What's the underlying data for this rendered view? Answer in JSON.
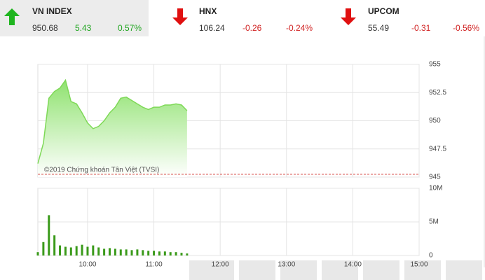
{
  "header": {
    "indices": [
      {
        "name": "VN INDEX",
        "value": "950.68",
        "change": "5.43",
        "percent": "0.57%",
        "direction": "up"
      },
      {
        "name": "HNX",
        "value": "106.24",
        "change": "-0.26",
        "percent": "-0.24%",
        "direction": "down"
      },
      {
        "name": "UPCOM",
        "value": "55.49",
        "change": "-0.31",
        "percent": "-0.56%",
        "direction": "down"
      }
    ]
  },
  "chart_data": [
    {
      "type": "area",
      "color": "#7ed957",
      "reference": 945.25,
      "reference_color": "#d9534f",
      "annotation": "©2019 Chứng khoán Tân Việt (TVSI)",
      "x": [
        "09:15",
        "09:20",
        "09:25",
        "09:30",
        "09:35",
        "09:40",
        "09:45",
        "09:50",
        "09:55",
        "10:00",
        "10:05",
        "10:10",
        "10:15",
        "10:20",
        "10:25",
        "10:30",
        "10:35",
        "10:40",
        "10:45",
        "10:50",
        "10:55",
        "11:00",
        "11:05",
        "11:10",
        "11:15",
        "11:20",
        "11:25",
        "11:30"
      ],
      "values": [
        946.2,
        948.0,
        952.0,
        952.6,
        952.9,
        953.6,
        951.7,
        951.5,
        950.7,
        949.8,
        949.3,
        949.5,
        950.0,
        950.7,
        951.2,
        952.0,
        952.1,
        951.8,
        951.5,
        951.2,
        951.0,
        951.2,
        951.2,
        951.4,
        951.4,
        951.5,
        951.4,
        950.9
      ],
      "xlim": [
        "09:15",
        "15:00"
      ],
      "ylim": [
        945,
        955
      ],
      "yticks": [
        945,
        947.5,
        950,
        952.5,
        955
      ],
      "grid": true
    },
    {
      "type": "bar",
      "color": "#3a9a1a",
      "x": [
        "09:15",
        "09:20",
        "09:25",
        "09:30",
        "09:35",
        "09:40",
        "09:45",
        "09:50",
        "09:55",
        "10:00",
        "10:05",
        "10:10",
        "10:15",
        "10:20",
        "10:25",
        "10:30",
        "10:35",
        "10:40",
        "10:45",
        "10:50",
        "10:55",
        "11:00",
        "11:05",
        "11:10",
        "11:15",
        "11:20",
        "11:25",
        "11:30"
      ],
      "values": [
        500000,
        2000000,
        6000000,
        3000000,
        1500000,
        1300000,
        1200000,
        1400000,
        1600000,
        1300000,
        1500000,
        1200000,
        1000000,
        1100000,
        1000000,
        900000,
        900000,
        800000,
        900000,
        800000,
        700000,
        700000,
        600000,
        600000,
        500000,
        500000,
        400000,
        300000
      ],
      "xlim": [
        "09:15",
        "15:00"
      ],
      "ylim": [
        0,
        10000000
      ],
      "yticks": [
        0,
        {
          "value": 5000000,
          "label": "5M"
        },
        {
          "value": 10000000,
          "label": "10M"
        }
      ],
      "xticks": [
        "10:00",
        "11:00",
        "12:00",
        "13:00",
        "14:00",
        "15:00"
      ],
      "grid": true
    }
  ]
}
